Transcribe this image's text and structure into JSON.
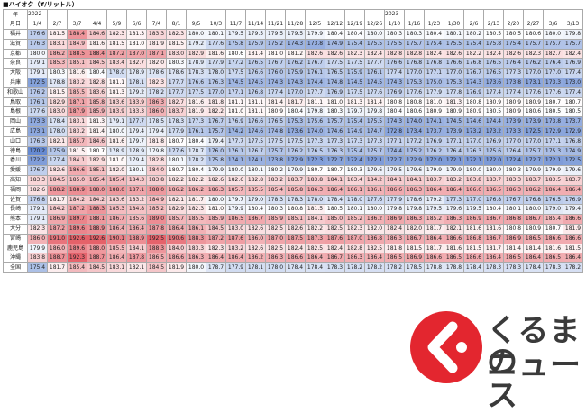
{
  "title": "■ハイオク（¥/リットル）",
  "table": {
    "corner_top": "年",
    "corner_bottom": "月日",
    "color_low": "#4a74c9",
    "color_high": "#e0454f",
    "columns": [
      {
        "year": "2022",
        "date": "1/4"
      },
      {
        "date": "2/7"
      },
      {
        "date": "3/7"
      },
      {
        "date": "4/4"
      },
      {
        "date": "5/9"
      },
      {
        "date": "6/6"
      },
      {
        "date": "7/4"
      },
      {
        "date": "8/1"
      },
      {
        "date": "9/5"
      },
      {
        "date": "10/3"
      },
      {
        "date": "11/7"
      },
      {
        "date": "11/14"
      },
      {
        "date": "11/21"
      },
      {
        "date": "11/28"
      },
      {
        "date": "12/5"
      },
      {
        "date": "12/12"
      },
      {
        "date": "12/19"
      },
      {
        "date": "12/26"
      },
      {
        "year": "2023",
        "date": "1/10"
      },
      {
        "date": "1/16"
      },
      {
        "date": "1/23"
      },
      {
        "date": "1/30"
      },
      {
        "date": "2/6"
      },
      {
        "date": "2/13"
      },
      {
        "date": "2/20"
      },
      {
        "date": "2/27"
      },
      {
        "date": "3/6"
      },
      {
        "date": "3/13"
      }
    ],
    "rows": [
      {
        "label": "福井",
        "values": [
          "176.6",
          "181.5",
          "188.4",
          "184.6",
          "182.3",
          "181.3",
          "183.3",
          "182.3",
          "180.0",
          "180.1",
          "179.5",
          "179.5",
          "179.5",
          "179.5",
          "179.9",
          "180.4",
          "180.4",
          "180.0",
          "180.3",
          "180.3",
          "180.4",
          "180.1",
          "180.2",
          "180.5",
          "180.5",
          "180.6",
          "180.0",
          "179.8"
        ]
      },
      {
        "label": "滋賀",
        "values": [
          "176.3",
          "183.1",
          "184.9",
          "181.6",
          "181.5",
          "181.0",
          "181.9",
          "181.5",
          "179.2",
          "177.6",
          "175.8",
          "175.9",
          "175.2",
          "174.3",
          "173.8",
          "174.9",
          "175.4",
          "175.5",
          "175.5",
          "175.7",
          "175.4",
          "175.5",
          "175.4",
          "175.8",
          "175.4",
          "175.7",
          "175.7",
          "175.7"
        ]
      },
      {
        "label": "京都",
        "values": [
          "180.0",
          "186.2",
          "188.5",
          "188.4",
          "187.2",
          "187.0",
          "187.1",
          "183.0",
          "182.9",
          "181.6",
          "180.6",
          "181.4",
          "181.0",
          "181.2",
          "182.6",
          "182.6",
          "182.3",
          "182.4",
          "182.8",
          "182.8",
          "182.4",
          "182.6",
          "182.2",
          "182.4",
          "182.6",
          "182.3",
          "182.7",
          "182.4"
        ]
      },
      {
        "label": "奈良",
        "values": [
          "179.1",
          "185.3",
          "185.1",
          "184.5",
          "183.4",
          "182.7",
          "182.0",
          "180.3",
          "178.9",
          "177.9",
          "177.2",
          "176.5",
          "176.7",
          "176.2",
          "176.7",
          "177.5",
          "177.5",
          "177.7",
          "176.6",
          "176.8",
          "176.8",
          "176.6",
          "176.8",
          "176.5",
          "176.4",
          "176.2",
          "176.4",
          "176.9"
        ]
      },
      {
        "label": "大阪",
        "values": [
          "179.1",
          "180.3",
          "181.6",
          "180.4",
          "178.0",
          "178.9",
          "178.6",
          "178.6",
          "178.3",
          "178.0",
          "177.5",
          "176.6",
          "176.0",
          "175.9",
          "176.1",
          "176.5",
          "175.9",
          "176.1",
          "177.4",
          "177.0",
          "177.1",
          "177.0",
          "176.7",
          "176.5",
          "177.3",
          "177.0",
          "177.0",
          "177.4"
        ]
      },
      {
        "label": "兵庫",
        "values": [
          "172.5",
          "178.8",
          "183.2",
          "182.8",
          "181.1",
          "178.1",
          "182.3",
          "177.7",
          "176.6",
          "176.3",
          "174.5",
          "174.5",
          "174.3",
          "174.3",
          "174.4",
          "174.8",
          "174.5",
          "174.5",
          "174.3",
          "175.3",
          "175.0",
          "175.3",
          "174.3",
          "173.6",
          "173.8",
          "173.1",
          "173.3",
          "173.0"
        ]
      },
      {
        "label": "和歌山",
        "values": [
          "176.2",
          "181.5",
          "185.5",
          "183.6",
          "181.3",
          "179.2",
          "178.2",
          "177.7",
          "177.5",
          "177.0",
          "177.1",
          "176.8",
          "177.4",
          "177.0",
          "177.7",
          "176.9",
          "177.5",
          "177.6",
          "176.9",
          "177.6",
          "177.9",
          "177.8",
          "176.9",
          "177.4",
          "177.4",
          "177.6",
          "177.6",
          "177.4"
        ]
      },
      {
        "label": "鳥取",
        "values": [
          "176.1",
          "182.9",
          "187.1",
          "185.8",
          "183.6",
          "183.9",
          "186.3",
          "182.7",
          "181.6",
          "181.8",
          "181.1",
          "181.1",
          "181.4",
          "181.7",
          "181.1",
          "181.0",
          "181.3",
          "181.4",
          "180.8",
          "180.8",
          "181.0",
          "181.3",
          "180.8",
          "180.9",
          "180.9",
          "180.9",
          "180.7",
          "180.7"
        ]
      },
      {
        "label": "島根",
        "values": [
          "177.6",
          "183.0",
          "187.9",
          "185.9",
          "183.9",
          "183.3",
          "186.0",
          "183.7",
          "181.9",
          "182.2",
          "181.0",
          "181.1",
          "180.9",
          "180.4",
          "179.8",
          "180.3",
          "179.7",
          "179.8",
          "180.4",
          "180.6",
          "180.9",
          "180.9",
          "180.9",
          "180.5",
          "180.9",
          "180.6",
          "180.5",
          "180.5"
        ]
      },
      {
        "label": "岡山",
        "values": [
          "173.3",
          "178.4",
          "183.1",
          "181.3",
          "179.1",
          "177.7",
          "178.5",
          "178.3",
          "177.3",
          "176.7",
          "176.9",
          "176.6",
          "176.5",
          "175.3",
          "175.6",
          "175.7",
          "175.4",
          "175.5",
          "174.3",
          "174.0",
          "174.1",
          "174.5",
          "174.6",
          "174.4",
          "173.9",
          "173.9",
          "173.8",
          "173.7"
        ]
      },
      {
        "label": "広島",
        "values": [
          "173.1",
          "178.0",
          "183.2",
          "181.4",
          "180.0",
          "179.4",
          "179.4",
          "177.9",
          "176.1",
          "175.7",
          "174.2",
          "174.6",
          "174.8",
          "173.6",
          "174.0",
          "174.6",
          "174.9",
          "174.7",
          "172.8",
          "173.4",
          "173.7",
          "173.9",
          "173.2",
          "173.2",
          "173.3",
          "172.5",
          "172.9",
          "172.9"
        ]
      },
      {
        "label": "山口",
        "values": [
          "176.3",
          "182.1",
          "185.7",
          "184.6",
          "181.6",
          "179.7",
          "181.8",
          "180.7",
          "180.4",
          "179.4",
          "177.7",
          "177.5",
          "177.5",
          "177.5",
          "177.3",
          "177.3",
          "177.3",
          "177.3",
          "177.1",
          "177.2",
          "176.9",
          "177.1",
          "177.0",
          "176.9",
          "177.0",
          "177.0",
          "177.1",
          "176.8"
        ]
      },
      {
        "label": "徳島",
        "values": [
          "170.2",
          "175.9",
          "181.5",
          "180.7",
          "178.9",
          "178.9",
          "179.8",
          "177.6",
          "178.7",
          "176.0",
          "176.1",
          "176.7",
          "175.7",
          "176.2",
          "176.5",
          "176.3",
          "175.4",
          "175.7",
          "174.4",
          "175.2",
          "176.2",
          "176.4",
          "176.3",
          "175.6",
          "176.4",
          "175.7",
          "175.3",
          "174.9"
        ]
      },
      {
        "label": "香川",
        "values": [
          "172.2",
          "177.4",
          "184.1",
          "182.9",
          "181.0",
          "179.4",
          "182.8",
          "180.1",
          "178.2",
          "175.8",
          "174.1",
          "174.1",
          "173.8",
          "172.9",
          "172.3",
          "172.7",
          "172.4",
          "172.1",
          "172.7",
          "172.9",
          "172.0",
          "172.1",
          "172.1",
          "172.0",
          "172.4",
          "172.7",
          "172.1",
          "172.5"
        ]
      },
      {
        "label": "愛媛",
        "values": [
          "176.7",
          "182.6",
          "186.6",
          "185.1",
          "182.0",
          "180.1",
          "184.0",
          "180.7",
          "180.4",
          "179.9",
          "180.0",
          "180.1",
          "180.2",
          "179.9",
          "180.7",
          "180.7",
          "180.3",
          "179.6",
          "179.5",
          "179.6",
          "179.9",
          "179.9",
          "180.0",
          "180.0",
          "180.3",
          "179.9",
          "179.9",
          "179.6"
        ]
      },
      {
        "label": "高知",
        "values": [
          "183.3",
          "184.5",
          "185.0",
          "185.4",
          "185.4",
          "184.3",
          "183.8",
          "182.2",
          "182.2",
          "182.6",
          "182.6",
          "182.8",
          "183.2",
          "183.7",
          "183.8",
          "184.1",
          "183.4",
          "184.2",
          "184.1",
          "184.1",
          "183.7",
          "183.2",
          "183.8",
          "183.7",
          "183.3",
          "183.7",
          "183.5",
          "183.7"
        ]
      },
      {
        "label": "福岡",
        "values": [
          "182.6",
          "188.2",
          "188.9",
          "188.0",
          "188.0",
          "187.1",
          "188.0",
          "186.2",
          "186.2",
          "186.3",
          "185.7",
          "185.5",
          "185.4",
          "185.8",
          "186.3",
          "186.4",
          "186.1",
          "186.1",
          "186.6",
          "186.3",
          "186.4",
          "186.4",
          "186.6",
          "186.5",
          "186.3",
          "186.2",
          "186.4",
          "186.4"
        ]
      },
      {
        "label": "佐賀",
        "values": [
          "176.8",
          "181.7",
          "184.2",
          "184.2",
          "183.6",
          "183.2",
          "184.9",
          "182.1",
          "181.7",
          "180.0",
          "179.7",
          "179.0",
          "178.3",
          "178.3",
          "178.0",
          "178.4",
          "178.0",
          "177.6",
          "177.9",
          "178.6",
          "179.2",
          "177.3",
          "177.0",
          "176.8",
          "176.7",
          "176.8",
          "176.5",
          "176.9"
        ]
      },
      {
        "label": "長崎",
        "values": [
          "179.1",
          "184.2",
          "187.2",
          "188.3",
          "185.3",
          "184.8",
          "185.2",
          "182.9",
          "182.3",
          "181.0",
          "179.9",
          "180.4",
          "180.3",
          "180.8",
          "181.5",
          "180.5",
          "180.1",
          "180.0",
          "179.8",
          "179.8",
          "179.5",
          "179.6",
          "179.5",
          "180.4",
          "180.1",
          "180.0",
          "179.0",
          "179.4"
        ]
      },
      {
        "label": "熊本",
        "values": [
          "179.1",
          "186.9",
          "189.7",
          "188.1",
          "186.7",
          "185.6",
          "189.0",
          "185.7",
          "185.5",
          "185.9",
          "186.5",
          "186.7",
          "185.9",
          "185.1",
          "184.1",
          "185.0",
          "185.2",
          "186.2",
          "186.9",
          "186.3",
          "185.2",
          "186.3",
          "186.9",
          "186.7",
          "186.8",
          "186.7",
          "185.4",
          "186.6"
        ]
      },
      {
        "label": "大分",
        "values": [
          "182.3",
          "187.2",
          "189.6",
          "188.9",
          "186.4",
          "186.4",
          "187.8",
          "186.4",
          "186.1",
          "184.5",
          "183.0",
          "182.6",
          "182.5",
          "182.6",
          "182.2",
          "182.5",
          "182.3",
          "182.0",
          "182.4",
          "182.0",
          "181.7",
          "182.1",
          "181.6",
          "181.6",
          "180.8",
          "180.9",
          "180.7",
          "181.9"
        ]
      },
      {
        "label": "宮崎",
        "values": [
          "186.0",
          "191.0",
          "192.6",
          "192.6",
          "190.1",
          "188.9",
          "192.5",
          "190.6",
          "188.3",
          "187.2",
          "187.6",
          "186.0",
          "187.0",
          "187.5",
          "187.3",
          "187.6",
          "187.0",
          "186.8",
          "186.3",
          "186.7",
          "186.4",
          "186.6",
          "186.8",
          "186.7",
          "186.9",
          "186.5",
          "186.6",
          "186.6"
        ]
      },
      {
        "label": "鹿児島",
        "values": [
          "179.9",
          "186.0",
          "189.6",
          "188.0",
          "185.5",
          "184.1",
          "188.3",
          "184.0",
          "183.3",
          "182.3",
          "183.2",
          "182.6",
          "182.5",
          "182.4",
          "182.5",
          "182.4",
          "182.8",
          "182.5",
          "181.8",
          "181.5",
          "181.7",
          "181.6",
          "181.5",
          "181.7",
          "181.4",
          "181.4",
          "181.6",
          "181.5"
        ]
      },
      {
        "label": "沖縄",
        "values": [
          "183.8",
          "188.7",
          "192.3",
          "188.7",
          "186.4",
          "187.8",
          "186.5",
          "186.6",
          "186.3",
          "186.4",
          "186.4",
          "186.2",
          "186.3",
          "186.6",
          "186.4",
          "186.7",
          "186.3",
          "186.4",
          "186.5",
          "186.9",
          "186.6",
          "186.5",
          "186.6",
          "186.4",
          "186.5",
          "186.4",
          "186.5",
          "186.4"
        ]
      },
      {
        "label": "全国",
        "values": [
          "175.4",
          "181.7",
          "185.4",
          "184.5",
          "183.1",
          "182.1",
          "184.5",
          "181.9",
          "180.0",
          "178.7",
          "177.9",
          "178.1",
          "178.0",
          "178.4",
          "178.4",
          "178.3",
          "178.2",
          "178.2",
          "178.2",
          "178.5",
          "178.8",
          "178.8",
          "178.4",
          "178.3",
          "178.3",
          "178.4",
          "178.3",
          "178.2"
        ]
      }
    ]
  },
  "logo": {
    "line1": "くるまの",
    "line2": "ニュース"
  }
}
